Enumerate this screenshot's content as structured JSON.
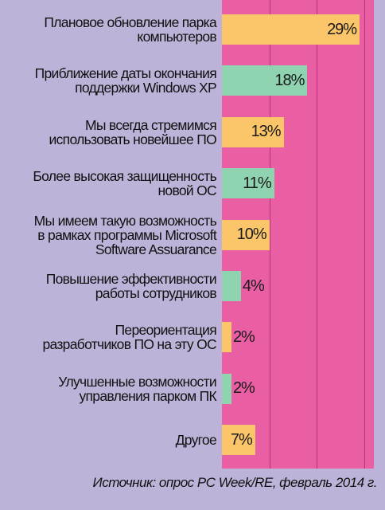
{
  "chart_data": {
    "type": "bar",
    "orientation": "horizontal",
    "categories": [
      [
        "Плановое обновление парка",
        "компьютеров"
      ],
      [
        "Приближение даты окончания",
        "поддержки Windows XP"
      ],
      [
        "Мы всегда стремимся",
        "использовать новейшее ПО"
      ],
      [
        "Более высокая защищенность",
        "новой ОС"
      ],
      [
        "Мы имеем такую возможность",
        "в рамках программы Microsoft",
        "Software Assuarance"
      ],
      [
        "Повышение эффективности",
        "работы сотрудников"
      ],
      [
        "Переориентация",
        "разработчиков ПО на эту ОС"
      ],
      [
        "Улучшенные возможности",
        "управления парком ПК"
      ],
      [
        "Другое"
      ]
    ],
    "values": [
      29,
      18,
      13,
      11,
      10,
      4,
      2,
      2,
      7
    ],
    "value_labels": [
      "29%",
      "18%",
      "13%",
      "11%",
      "10%",
      "4%",
      "2%",
      "2%",
      "7%"
    ],
    "bar_colors": [
      "#fbc56a",
      "#8fd3b0",
      "#fbc56a",
      "#8fd3b0",
      "#fbc56a",
      "#8fd3b0",
      "#fbc56a",
      "#8fd3b0",
      "#fbc56a"
    ],
    "xlim": [
      0,
      32
    ],
    "grid": true,
    "source": "Источник: опрос PC Week/RE, февраль 2014 г."
  },
  "colors": {
    "background": "#bdb3d8",
    "plot_area": "#ea5fa4",
    "gridline": "#b8327a"
  }
}
